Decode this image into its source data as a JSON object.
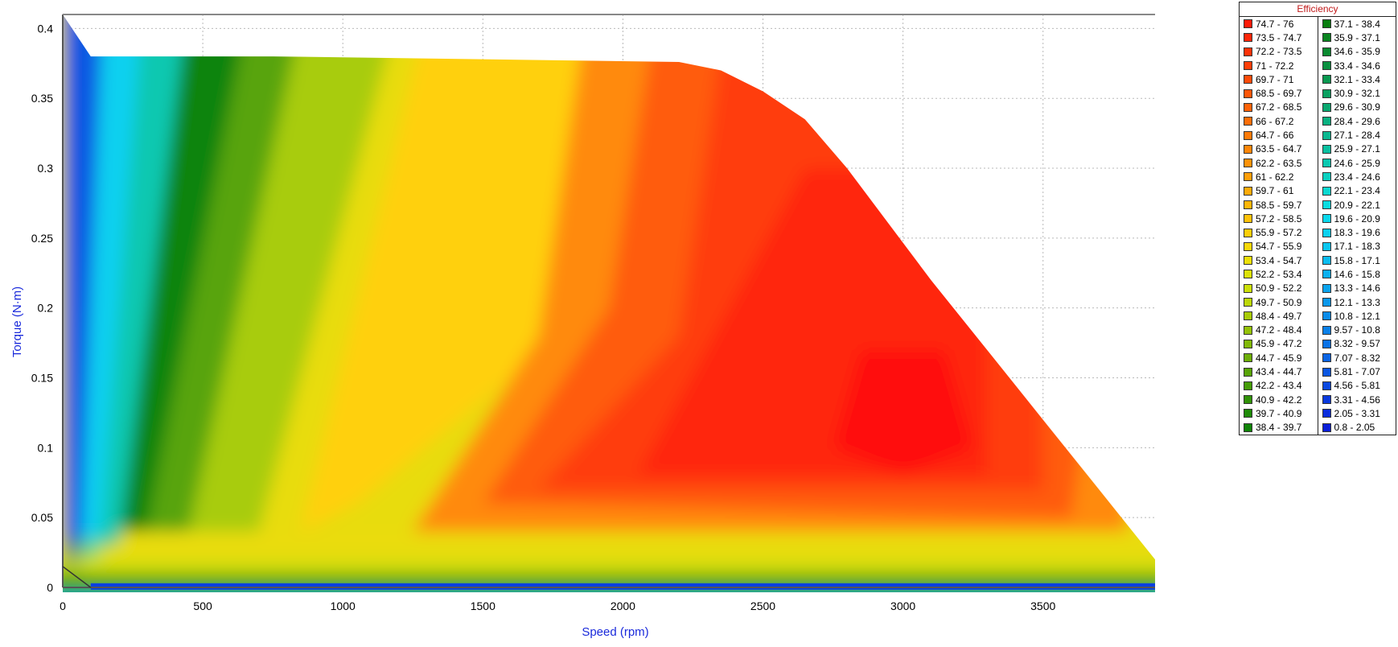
{
  "chart_data": {
    "type": "heatmap",
    "xlabel": "Speed (rpm)",
    "ylabel": "Torque (N·m)",
    "xlim": [
      0,
      3900
    ],
    "ylim": [
      0,
      0.41
    ],
    "x_ticks": [
      "0",
      "500",
      "1000",
      "1500",
      "2000",
      "2500",
      "3000",
      "3500"
    ],
    "y_ticks": [
      "0",
      "0.05",
      "0.1",
      "0.15",
      "0.2",
      "0.25",
      "0.3",
      "0.35",
      "0.4"
    ],
    "grid": true,
    "legend_position": "right",
    "legend_title": "Efficiency",
    "envelope_torque_speed": [
      [
        0,
        0.41
      ],
      [
        100,
        0.38
      ],
      [
        750,
        0.38
      ],
      [
        1500,
        0.378
      ],
      [
        2200,
        0.376
      ],
      [
        2350,
        0.37
      ],
      [
        2500,
        0.355
      ],
      [
        2650,
        0.335
      ],
      [
        2800,
        0.3
      ],
      [
        2950,
        0.26
      ],
      [
        3100,
        0.22
      ],
      [
        3300,
        0.17
      ],
      [
        3500,
        0.12
      ],
      [
        3700,
        0.07
      ],
      [
        3900,
        0.02
      ]
    ],
    "peak_efficiency_region": {
      "speed": [
        2800,
        3200
      ],
      "torque": [
        0.1,
        0.16
      ],
      "efficiency": "74.7 - 76"
    },
    "legend_left": [
      {
        "label": "74.7 - 76",
        "color": "#ff1a08"
      },
      {
        "label": "73.5 - 74.7",
        "color": "#ff2608"
      },
      {
        "label": "72.2 - 73.5",
        "color": "#ff3208"
      },
      {
        "label": "71 - 72.2",
        "color": "#ff3e08"
      },
      {
        "label": "69.7 - 71",
        "color": "#ff4a08"
      },
      {
        "label": "68.5 - 69.7",
        "color": "#ff5608"
      },
      {
        "label": "67.2 - 68.5",
        "color": "#ff6208"
      },
      {
        "label": "66 - 67.2",
        "color": "#ff6e08"
      },
      {
        "label": "64.7 - 66",
        "color": "#ff7a08"
      },
      {
        "label": "63.5 - 64.7",
        "color": "#ff8608"
      },
      {
        "label": "62.2 - 63.5",
        "color": "#ff9208"
      },
      {
        "label": "61 - 62.2",
        "color": "#ff9e08"
      },
      {
        "label": "59.7 - 61",
        "color": "#ffaa08"
      },
      {
        "label": "58.5 - 59.7",
        "color": "#ffb608"
      },
      {
        "label": "57.2 - 58.5",
        "color": "#ffc208"
      },
      {
        "label": "55.9 - 57.2",
        "color": "#ffce08"
      },
      {
        "label": "54.7 - 55.9",
        "color": "#f8d808"
      },
      {
        "label": "53.4 - 54.7",
        "color": "#ece008"
      },
      {
        "label": "52.2 - 53.4",
        "color": "#dce208"
      },
      {
        "label": "50.9 - 52.2",
        "color": "#cce008"
      },
      {
        "label": "49.7 - 50.9",
        "color": "#bcd808"
      },
      {
        "label": "48.4 - 49.7",
        "color": "#a8cc08"
      },
      {
        "label": "47.2 - 48.4",
        "color": "#94c208"
      },
      {
        "label": "45.9 - 47.2",
        "color": "#80b808"
      },
      {
        "label": "44.7 - 45.9",
        "color": "#6cae08"
      },
      {
        "label": "43.4 - 44.7",
        "color": "#58a408"
      },
      {
        "label": "42.2 - 43.4",
        "color": "#449c08"
      },
      {
        "label": "40.9 - 42.2",
        "color": "#309208"
      },
      {
        "label": "39.7 - 40.9",
        "color": "#1e8a08"
      },
      {
        "label": "38.4 - 39.7",
        "color": "#108408"
      }
    ],
    "legend_right": [
      {
        "label": "37.1 - 38.4",
        "color": "#0a7e10"
      },
      {
        "label": "35.9 - 37.1",
        "color": "#0a8420"
      },
      {
        "label": "34.6 - 35.9",
        "color": "#0a8a30"
      },
      {
        "label": "33.4 - 34.6",
        "color": "#0a9040"
      },
      {
        "label": "32.1 - 33.4",
        "color": "#0a9850"
      },
      {
        "label": "30.9 - 32.1",
        "color": "#0aa060"
      },
      {
        "label": "29.6 - 30.9",
        "color": "#0aa870"
      },
      {
        "label": "28.4 - 29.6",
        "color": "#0ab080"
      },
      {
        "label": "27.1 - 28.4",
        "color": "#0ab890"
      },
      {
        "label": "25.9 - 27.1",
        "color": "#0ac0a0"
      },
      {
        "label": "24.6 - 25.9",
        "color": "#0ac8b0"
      },
      {
        "label": "23.4 - 24.6",
        "color": "#0ad0c0"
      },
      {
        "label": "22.1 - 23.4",
        "color": "#0ad8d0"
      },
      {
        "label": "20.9 - 22.1",
        "color": "#0adce0"
      },
      {
        "label": "19.6 - 20.9",
        "color": "#0ad8ec"
      },
      {
        "label": "18.3 - 19.6",
        "color": "#0ad0f0"
      },
      {
        "label": "17.1 - 18.3",
        "color": "#0ac6f0"
      },
      {
        "label": "15.8 - 17.1",
        "color": "#0abcf0"
      },
      {
        "label": "14.6 - 15.8",
        "color": "#0ab0f0"
      },
      {
        "label": "13.3 - 14.6",
        "color": "#0aa4ee"
      },
      {
        "label": "12.1 - 13.3",
        "color": "#0a98ec"
      },
      {
        "label": "10.8 - 12.1",
        "color": "#0a8cea"
      },
      {
        "label": "9.57 - 10.8",
        "color": "#0a80e8"
      },
      {
        "label": "8.32 - 9.57",
        "color": "#0a72e6"
      },
      {
        "label": "7.07 - 8.32",
        "color": "#0a64e4"
      },
      {
        "label": "5.81 - 7.07",
        "color": "#0a56e2"
      },
      {
        "label": "4.56 - 5.81",
        "color": "#0a48e0"
      },
      {
        "label": "3.31 - 4.56",
        "color": "#0a3ade"
      },
      {
        "label": "2.05 - 3.31",
        "color": "#0a2cdc"
      },
      {
        "label": "0.8 - 2.05",
        "color": "#0a1ed8"
      }
    ]
  }
}
